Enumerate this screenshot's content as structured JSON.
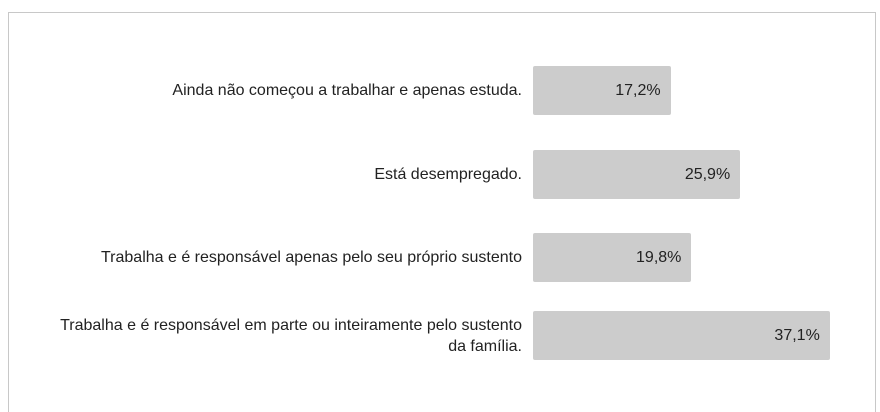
{
  "chart_data": {
    "type": "bar",
    "orientation": "horizontal",
    "categories": [
      "Ainda não começou a trabalhar e apenas estuda.",
      "Está desempregado.",
      "Trabalha e é responsável apenas pelo seu próprio sustento",
      "Trabalha e é responsável em parte ou inteiramente pelo sustento da família."
    ],
    "values": [
      17.2,
      25.9,
      19.8,
      37.1
    ],
    "value_labels": [
      "17,2%",
      "25,9%",
      "19,8%",
      "37,1%"
    ],
    "color": "#cccccc"
  }
}
